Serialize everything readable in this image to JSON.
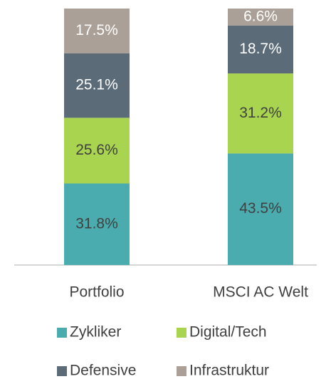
{
  "chart_data": {
    "type": "stacked_bar",
    "categories": [
      "Portfolio",
      "MSCI AC Welt"
    ],
    "series": [
      {
        "name": "Zykliker",
        "color": "#4bacb0",
        "values": [
          31.8,
          43.5
        ],
        "value_labels": [
          "31.8%",
          "43.5%"
        ]
      },
      {
        "name": "Digital/Tech",
        "color": "#a9d44f",
        "values": [
          25.6,
          31.2
        ],
        "value_labels": [
          "25.6%",
          "31.2%"
        ]
      },
      {
        "name": "Defensive",
        "color": "#5b6b78",
        "values": [
          25.1,
          18.7
        ],
        "value_labels": [
          "25.1%",
          "18.7%"
        ]
      },
      {
        "name": "Infrastruktur",
        "color": "#aaa097",
        "values": [
          17.5,
          6.6
        ],
        "value_labels": [
          "17.5%",
          "6.6%"
        ]
      }
    ],
    "legend": "bottom"
  }
}
